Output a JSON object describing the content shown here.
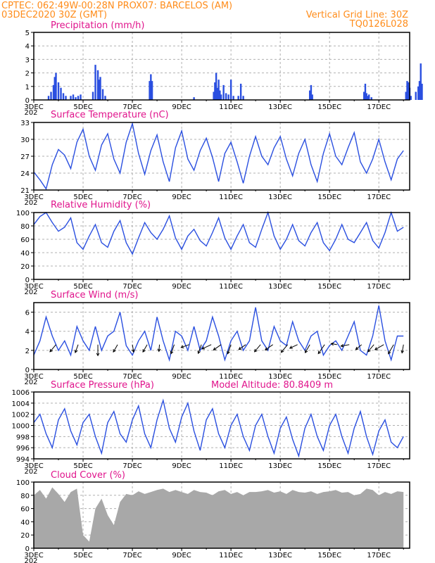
{
  "header": {
    "line1_left": "CPTEC:   062:49W-00:28N   PROX07: BARCELOS (AM)",
    "line2_left": "03DEC2020 30Z (GMT)",
    "line2_right": "Vertical Grid Line: 30Z",
    "line3_right": "TQ0126L028"
  },
  "chart_data": [
    {
      "type": "bar",
      "title": "Precipitation (mm/h)",
      "ylim": [
        0,
        5
      ],
      "yticks": [
        0,
        1,
        2,
        3,
        4,
        5
      ],
      "x": [
        0.6,
        0.7,
        0.8,
        0.85,
        0.9,
        1.0,
        1.1,
        1.2,
        1.3,
        1.5,
        1.6,
        1.7,
        1.8,
        1.9,
        2.4,
        2.5,
        2.6,
        2.65,
        2.7,
        2.8,
        2.9,
        4.7,
        4.75,
        4.8,
        6.5,
        7.3,
        7.35,
        7.4,
        7.45,
        7.5,
        7.55,
        7.6,
        7.7,
        7.8,
        7.9,
        8.0,
        8.1,
        8.3,
        8.4,
        8.5,
        11.2,
        11.25,
        11.3,
        13.4,
        13.45,
        13.5,
        13.55,
        13.6,
        13.7,
        15.1,
        15.15,
        15.2,
        15.25,
        15.3,
        15.5,
        15.6,
        15.65,
        15.7,
        15.75
      ],
      "values": [
        0.3,
        0.6,
        1.1,
        1.7,
        2.0,
        1.3,
        0.9,
        0.5,
        0.3,
        0.3,
        0.4,
        0.2,
        0.3,
        0.4,
        0.6,
        2.6,
        2.2,
        1.5,
        1.7,
        0.8,
        0.3,
        1.4,
        1.9,
        1.4,
        0.2,
        0.6,
        1.3,
        2.0,
        0.9,
        1.5,
        0.7,
        0.4,
        1.1,
        0.5,
        0.4,
        1.5,
        0.3,
        0.3,
        1.2,
        0.3,
        0.7,
        1.1,
        0.4,
        0.6,
        1.2,
        0.5,
        0.3,
        0.4,
        0.2,
        0.6,
        1.4,
        1.3,
        0.9,
        0.3,
        0.6,
        1.0,
        1.4,
        2.7,
        1.2
      ],
      "x_unit_note": "days after 03DEC 30Z"
    },
    {
      "type": "line",
      "title": "Surface Temperature (nC)",
      "ylim": [
        21,
        33
      ],
      "yticks": [
        21,
        24,
        27,
        30,
        33
      ],
      "x": [
        0,
        0.25,
        0.5,
        0.75,
        1.0,
        1.25,
        1.5,
        1.75,
        2.0,
        2.25,
        2.5,
        2.75,
        3.0,
        3.25,
        3.5,
        3.75,
        4.0,
        4.25,
        4.5,
        4.75,
        5.0,
        5.25,
        5.5,
        5.75,
        6.0,
        6.25,
        6.5,
        6.75,
        7.0,
        7.25,
        7.5,
        7.75,
        8.0,
        8.25,
        8.5,
        8.75,
        9.0,
        9.25,
        9.5,
        9.75,
        10.0,
        10.25,
        10.5,
        10.75,
        11.0,
        11.25,
        11.5,
        11.75,
        12.0,
        12.25,
        12.5,
        12.75,
        13.0,
        13.25,
        13.5,
        13.75,
        14.0,
        14.25,
        14.5,
        14.75,
        15.0
      ],
      "values": [
        24.2,
        22.8,
        21.2,
        25.5,
        28.2,
        27.2,
        24.8,
        29.5,
        31.8,
        27.0,
        24.5,
        29.0,
        31.0,
        26.5,
        24.0,
        29.5,
        32.8,
        27.5,
        23.8,
        28.0,
        30.8,
        26.0,
        22.5,
        28.5,
        31.5,
        26.5,
        24.5,
        28.0,
        30.2,
        26.8,
        22.5,
        27.5,
        29.5,
        26.0,
        22.2,
        27.0,
        30.5,
        27.0,
        25.5,
        28.5,
        30.5,
        26.5,
        23.5,
        27.5,
        30.0,
        25.5,
        22.5,
        27.5,
        31.0,
        27.0,
        25.5,
        28.5,
        31.2,
        26.0,
        24.0,
        26.5,
        30.0,
        26.0,
        22.8,
        26.5,
        28.0
      ]
    },
    {
      "type": "line",
      "title": "Relative Humidity (%)",
      "ylim": [
        0,
        100
      ],
      "yticks": [
        0,
        20,
        40,
        60,
        80,
        100
      ],
      "x": [
        0,
        0.25,
        0.5,
        0.75,
        1.0,
        1.25,
        1.5,
        1.75,
        2.0,
        2.25,
        2.5,
        2.75,
        3.0,
        3.25,
        3.5,
        3.75,
        4.0,
        4.25,
        4.5,
        4.75,
        5.0,
        5.25,
        5.5,
        5.75,
        6.0,
        6.25,
        6.5,
        6.75,
        7.0,
        7.25,
        7.5,
        7.75,
        8.0,
        8.25,
        8.5,
        8.75,
        9.0,
        9.25,
        9.5,
        9.75,
        10.0,
        10.25,
        10.5,
        10.75,
        11.0,
        11.25,
        11.5,
        11.75,
        12.0,
        12.25,
        12.5,
        12.75,
        13.0,
        13.25,
        13.5,
        13.75,
        14.0,
        14.25,
        14.5,
        14.75,
        15.0
      ],
      "values": [
        82,
        94,
        100,
        85,
        72,
        78,
        92,
        55,
        45,
        65,
        82,
        55,
        48,
        72,
        88,
        55,
        38,
        62,
        85,
        70,
        60,
        75,
        95,
        62,
        45,
        65,
        75,
        58,
        50,
        70,
        92,
        62,
        45,
        65,
        82,
        55,
        48,
        75,
        100,
        65,
        45,
        60,
        82,
        58,
        50,
        70,
        85,
        55,
        43,
        60,
        82,
        60,
        55,
        70,
        85,
        58,
        47,
        70,
        100,
        72,
        78
      ]
    },
    {
      "type": "line",
      "title": "Surface Wind (m/s)",
      "ylim": [
        0,
        7
      ],
      "yticks": [
        0,
        2,
        4,
        6
      ],
      "x": [
        0,
        0.25,
        0.5,
        0.75,
        1.0,
        1.25,
        1.5,
        1.75,
        2.0,
        2.25,
        2.5,
        2.75,
        3.0,
        3.25,
        3.5,
        3.75,
        4.0,
        4.25,
        4.5,
        4.75,
        5.0,
        5.25,
        5.5,
        5.75,
        6.0,
        6.25,
        6.5,
        6.75,
        7.0,
        7.25,
        7.5,
        7.75,
        8.0,
        8.25,
        8.5,
        8.75,
        9.0,
        9.25,
        9.5,
        9.75,
        10.0,
        10.25,
        10.5,
        10.75,
        11.0,
        11.25,
        11.5,
        11.75,
        12.0,
        12.25,
        12.5,
        12.75,
        13.0,
        13.25,
        13.5,
        13.75,
        14.0,
        14.25,
        14.5,
        14.75,
        15.0
      ],
      "values": [
        1.5,
        3.0,
        5.5,
        3.5,
        2.0,
        3.0,
        1.5,
        4.5,
        3.0,
        2.0,
        4.5,
        2.0,
        3.5,
        4.0,
        6.0,
        2.5,
        1.5,
        3.0,
        4.0,
        2.0,
        5.5,
        3.0,
        1.0,
        4.0,
        3.5,
        2.0,
        4.5,
        2.0,
        3.0,
        5.5,
        3.5,
        1.0,
        3.0,
        4.0,
        2.0,
        3.0,
        6.5,
        3.0,
        2.0,
        4.5,
        3.0,
        2.5,
        5.0,
        3.0,
        2.0,
        3.5,
        4.0,
        1.5,
        2.5,
        3.0,
        2.0,
        3.5,
        5.0,
        2.0,
        1.5,
        3.5,
        6.7,
        3.0,
        1.0,
        3.5,
        3.5
      ],
      "barb_x": [
        0.9,
        1.8,
        2.6,
        3.4,
        4.0,
        4.6,
        5.1,
        5.7,
        6.3,
        6.8,
        7.2,
        7.6,
        8.0,
        8.6,
        9.2,
        9.7,
        10.3,
        10.7,
        11.2,
        11.8,
        12.3,
        12.8,
        13.3,
        13.8,
        14.2,
        14.6,
        15.0
      ],
      "barb_angle_deg": [
        230,
        250,
        270,
        240,
        280,
        240,
        265,
        250,
        200,
        250,
        205,
        215,
        250,
        215,
        230,
        215,
        230,
        205,
        240,
        235,
        170,
        190,
        220,
        230,
        210,
        240,
        260
      ],
      "barb_speed": [
        2.2,
        2.0,
        2.6,
        2.0,
        1.8,
        2.0,
        1.6,
        2.3,
        2.0,
        2.2,
        2.4,
        2.2,
        2.3,
        2.0,
        2.2,
        2.2,
        2.4,
        2.0,
        2.2,
        2.6,
        1.4,
        2.0,
        1.8,
        2.2,
        2.4,
        2.5,
        2.0
      ]
    },
    {
      "type": "line",
      "title": "Surface Pressure (hPa)",
      "annotation": "Model Altitude: 80.8409 m",
      "ylim": [
        994,
        1006
      ],
      "yticks": [
        994,
        996,
        998,
        1000,
        1002,
        1004,
        1006
      ],
      "x": [
        0,
        0.25,
        0.5,
        0.75,
        1.0,
        1.25,
        1.5,
        1.75,
        2.0,
        2.25,
        2.5,
        2.75,
        3.0,
        3.25,
        3.5,
        3.75,
        4.0,
        4.25,
        4.5,
        4.75,
        5.0,
        5.25,
        5.5,
        5.75,
        6.0,
        6.25,
        6.5,
        6.75,
        7.0,
        7.25,
        7.5,
        7.75,
        8.0,
        8.25,
        8.5,
        8.75,
        9.0,
        9.25,
        9.5,
        9.75,
        10.0,
        10.25,
        10.5,
        10.75,
        11.0,
        11.25,
        11.5,
        11.75,
        12.0,
        12.25,
        12.5,
        12.75,
        13.0,
        13.25,
        13.5,
        13.75,
        14.0,
        14.25,
        14.5,
        14.75,
        15.0
      ],
      "values": [
        1000.5,
        1002.0,
        998.5,
        996.0,
        1001.0,
        1003.0,
        999.0,
        996.5,
        1000.5,
        1002.0,
        998.0,
        995.0,
        1000.5,
        1002.5,
        998.5,
        997.0,
        1001.0,
        1003.5,
        998.5,
        996.0,
        1001.0,
        1004.5,
        999.5,
        997.0,
        1001.5,
        1004.0,
        999.0,
        995.5,
        1001.0,
        1003.0,
        998.5,
        996.0,
        1000.0,
        1002.0,
        998.0,
        995.5,
        1000.0,
        1002.0,
        998.0,
        995.0,
        999.5,
        1001.5,
        997.5,
        994.5,
        999.5,
        1002.0,
        998.0,
        995.5,
        1000.0,
        1002.0,
        998.0,
        995.0,
        999.5,
        1002.5,
        998.0,
        994.8,
        999.0,
        1001.0,
        997.0,
        996.0,
        998.0
      ]
    },
    {
      "type": "area",
      "title": "Cloud Cover (%)",
      "ylim": [
        0,
        100
      ],
      "yticks": [
        0,
        20,
        40,
        60,
        80,
        100
      ],
      "x": [
        0,
        0.25,
        0.5,
        0.75,
        1.0,
        1.25,
        1.5,
        1.75,
        2.0,
        2.25,
        2.5,
        2.75,
        3.0,
        3.25,
        3.5,
        3.75,
        4.0,
        4.25,
        4.5,
        4.75,
        5.0,
        5.25,
        5.5,
        5.75,
        6.0,
        6.25,
        6.5,
        6.75,
        7.0,
        7.25,
        7.5,
        7.75,
        8.0,
        8.25,
        8.5,
        8.75,
        9.0,
        9.25,
        9.5,
        9.75,
        10.0,
        10.25,
        10.5,
        10.75,
        11.0,
        11.25,
        11.5,
        11.75,
        12.0,
        12.25,
        12.5,
        12.75,
        13.0,
        13.25,
        13.5,
        13.75,
        14.0,
        14.25,
        14.5,
        14.75,
        15.0
      ],
      "values": [
        80,
        88,
        75,
        92,
        82,
        70,
        85,
        90,
        20,
        10,
        60,
        75,
        50,
        35,
        70,
        82,
        80,
        86,
        82,
        85,
        88,
        90,
        85,
        88,
        85,
        82,
        88,
        85,
        84,
        80,
        86,
        88,
        82,
        85,
        80,
        85,
        85,
        86,
        88,
        84,
        86,
        82,
        88,
        85,
        84,
        86,
        82,
        85,
        86,
        88,
        84,
        85,
        80,
        82,
        90,
        88,
        80,
        85,
        82,
        86,
        85
      ]
    }
  ],
  "x_axis": {
    "tick_labels": [
      "3DEC",
      "5DEC",
      "7DEC",
      "9DEC",
      "11DEC",
      "13DEC",
      "15DEC",
      "17DEC"
    ],
    "tick_days": [
      0,
      2,
      4,
      6,
      8,
      10,
      12,
      14
    ],
    "range_days": [
      0,
      15.25
    ],
    "year_stub": "202"
  },
  "colors": {
    "header": "#ff8c1a",
    "title": "#e0148c",
    "series": "#2a4fe0",
    "cloud": "#a8a8a8",
    "grid": "#b0b0b0"
  }
}
